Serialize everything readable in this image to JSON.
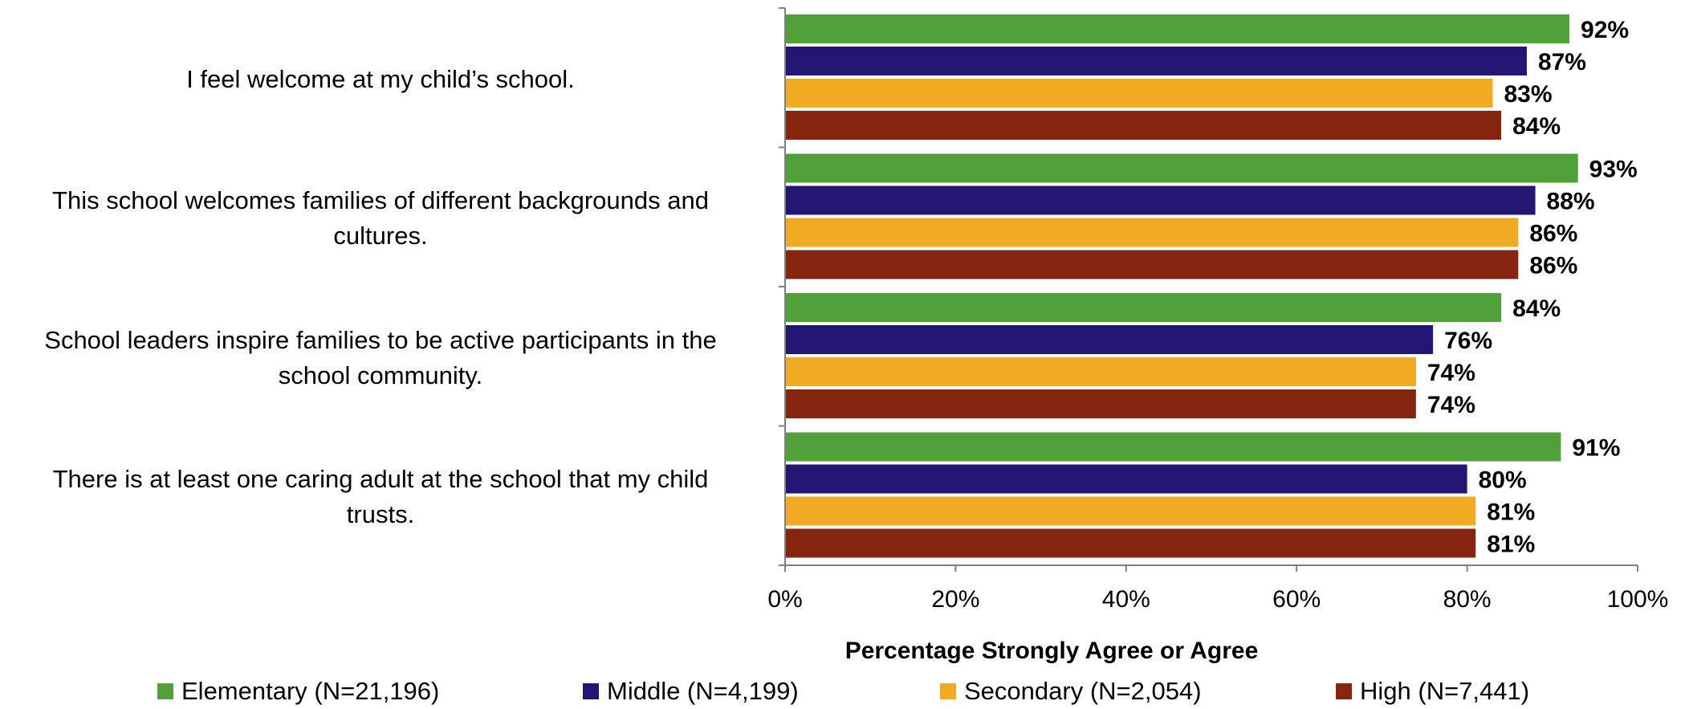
{
  "chart_data": {
    "type": "bar",
    "orientation": "horizontal",
    "categories": [
      "I feel welcome at my child’s school.",
      "This school welcomes families of different backgrounds and cultures.",
      "School leaders inspire families to be active participants in the school community.",
      "There is at least one caring adult at the school that my child trusts."
    ],
    "series": [
      {
        "name": "Elementary (N=21,196)",
        "color": "#51A13A",
        "values": [
          92,
          93,
          84,
          91
        ]
      },
      {
        "name": "Middle (N=4,199)",
        "color": "#221573",
        "values": [
          87,
          88,
          76,
          80
        ]
      },
      {
        "name": "Secondary (N=2,054)",
        "color": "#F0AB22",
        "values": [
          83,
          86,
          74,
          81
        ]
      },
      {
        "name": "High (N=7,441)",
        "color": "#86250F",
        "values": [
          84,
          86,
          74,
          81
        ]
      }
    ],
    "value_suffix": "%",
    "xlabel": "Percentage Strongly Agree or Agree",
    "xlim": [
      0,
      100
    ],
    "xticks": [
      "0%",
      "20%",
      "40%",
      "60%",
      "80%",
      "100%"
    ],
    "legend_position": "bottom",
    "grid": false
  },
  "category_label_lines": [
    [
      "I feel welcome at my child’s school."
    ],
    [
      "This school welcomes families of different backgrounds and",
      "cultures."
    ],
    [
      "School leaders inspire families to be active participants in the",
      "school community."
    ],
    [
      "There is at least one caring adult at the school that my child",
      "trusts."
    ]
  ]
}
